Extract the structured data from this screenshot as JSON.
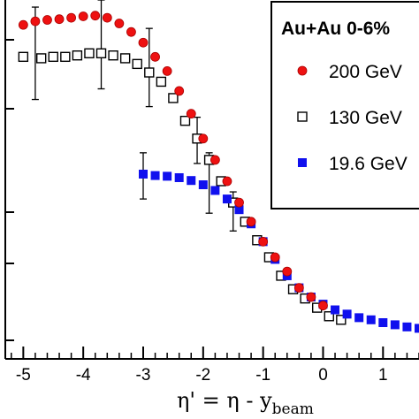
{
  "chart_data": {
    "type": "scatter",
    "title": "",
    "xlabel": "η' = η - y_beam",
    "xlabel_main": "η' = η - y",
    "xlabel_sub": "beam",
    "ylabel": "",
    "xlim": [
      -5.3,
      1.6
    ],
    "ylim": [
      -0.05,
      5.0
    ],
    "x_ticks": [
      -5,
      -4,
      -3,
      -2,
      -1,
      0,
      1
    ],
    "x_tick_labels": [
      "-5",
      "-4",
      "-3",
      "-2",
      "-1",
      "0",
      "1"
    ],
    "legend": {
      "title": "Au+Au 0-6%",
      "position": "top-right",
      "entries": [
        "200 GeV",
        "130 GeV",
        "19.6 GeV"
      ]
    },
    "series": [
      {
        "name": "200 GeV",
        "marker": "circle-filled",
        "color": "#ee1111",
        "x": [
          -5.4,
          -5.0,
          -4.8,
          -4.6,
          -4.4,
          -4.2,
          -4.0,
          -3.8,
          -3.6,
          -3.4,
          -3.2,
          -3.0,
          -2.8,
          -2.6,
          -2.4,
          -2.2,
          -2.0,
          -1.8,
          -1.6,
          -1.4,
          -1.2,
          -1.0,
          -0.8,
          -0.6,
          -0.4,
          -0.2,
          0.0
        ],
        "y": [
          4.7,
          4.65,
          4.7,
          4.72,
          4.73,
          4.75,
          4.77,
          4.78,
          4.75,
          4.67,
          4.55,
          4.4,
          4.2,
          4.0,
          3.72,
          3.4,
          3.05,
          2.75,
          2.45,
          2.15,
          1.88,
          1.6,
          1.38,
          1.18,
          0.95,
          0.82,
          0.7
        ]
      },
      {
        "name": "130 GeV",
        "marker": "square-open",
        "color": "#000000",
        "x": [
          -5.0,
          -4.7,
          -4.5,
          -4.3,
          -4.1,
          -3.9,
          -3.7,
          -3.5,
          -3.3,
          -3.1,
          -2.9,
          -2.7,
          -2.5,
          -2.3,
          -2.1,
          -1.9,
          -1.7,
          -1.5,
          -1.3,
          -1.1,
          -0.9,
          -0.7,
          -0.5,
          -0.3,
          -0.1,
          0.1,
          0.3
        ],
        "y": [
          4.2,
          4.18,
          4.2,
          4.2,
          4.22,
          4.25,
          4.25,
          4.22,
          4.18,
          4.1,
          3.98,
          3.85,
          3.62,
          3.3,
          3.05,
          2.75,
          2.45,
          2.15,
          1.88,
          1.62,
          1.38,
          1.12,
          0.93,
          0.8,
          0.67,
          0.55,
          0.5
        ],
        "error_bars": [
          {
            "x": -4.8,
            "y": 4.2,
            "low": 3.6,
            "high": 4.9
          },
          {
            "x": -3.7,
            "y": 4.25,
            "low": 3.75,
            "high": 5.0
          },
          {
            "x": -2.9,
            "y": 3.98,
            "low": 3.5,
            "high": 4.6
          },
          {
            "x": -2.1,
            "y": 3.05,
            "low": 2.7,
            "high": 3.35
          },
          {
            "x": -1.9,
            "y": 2.45,
            "low": 2.0,
            "high": 2.85
          },
          {
            "x": -1.5,
            "y": 2.0,
            "low": 1.75,
            "high": 2.3
          }
        ]
      },
      {
        "name": "19.6 GeV",
        "marker": "square-filled",
        "color": "#1010ee",
        "x": [
          -3.0,
          -2.8,
          -2.6,
          -2.4,
          -2.2,
          -2.0,
          -1.8,
          -1.6,
          -1.4,
          -1.2,
          -1.0,
          -0.8,
          -0.6,
          -0.4,
          -0.2,
          0.0,
          0.2,
          0.4,
          0.6,
          0.8,
          1.0,
          1.2,
          1.4,
          1.6
        ],
        "y": [
          2.55,
          2.53,
          2.52,
          2.5,
          2.46,
          2.4,
          2.32,
          2.2,
          2.05,
          1.85,
          1.6,
          1.35,
          1.12,
          0.95,
          0.82,
          0.72,
          0.64,
          0.58,
          0.53,
          0.5,
          0.46,
          0.43,
          0.4,
          0.38
        ],
        "error_bars": [
          {
            "x": -3.0,
            "y": 2.55,
            "low": 2.2,
            "high": 2.85
          }
        ]
      }
    ]
  }
}
